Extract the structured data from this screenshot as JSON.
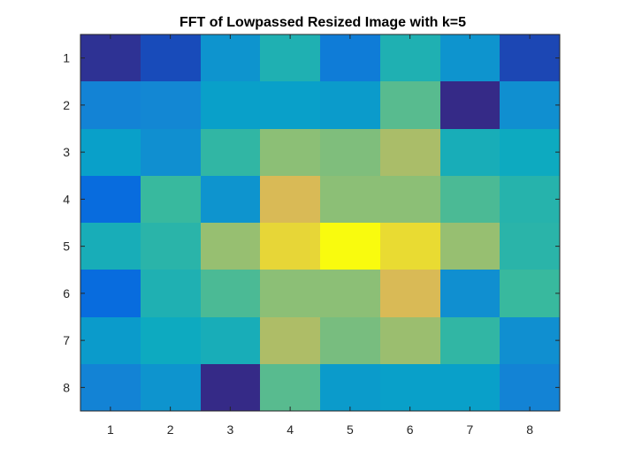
{
  "chart_data": {
    "type": "heatmap",
    "title": "FFT of Lowpassed Resized Image with k=5",
    "xlabel": "",
    "ylabel": "",
    "x_ticks": [
      "1",
      "2",
      "3",
      "4",
      "5",
      "6",
      "7",
      "8"
    ],
    "y_ticks": [
      "1",
      "2",
      "3",
      "4",
      "5",
      "6",
      "7",
      "8"
    ],
    "xlim": [
      0.5,
      8.5
    ],
    "ylim": [
      0.5,
      8.5
    ],
    "y_direction": "reverse",
    "colormap": "parula",
    "grid": false,
    "legend": "none",
    "colors": {
      "background": "#ffffff",
      "axis": "#262626"
    },
    "values": [
      [
        0.02,
        0.08,
        0.35,
        0.5,
        0.25,
        0.5,
        0.35,
        0.07
      ],
      [
        0.28,
        0.3,
        0.4,
        0.4,
        0.38,
        0.62,
        0.0,
        0.33
      ],
      [
        0.4,
        0.33,
        0.55,
        0.7,
        0.68,
        0.76,
        0.48,
        0.45
      ],
      [
        0.18,
        0.57,
        0.35,
        0.86,
        0.7,
        0.7,
        0.6,
        0.52
      ],
      [
        0.48,
        0.53,
        0.72,
        0.92,
        1.0,
        0.93,
        0.72,
        0.53
      ],
      [
        0.18,
        0.5,
        0.6,
        0.7,
        0.7,
        0.86,
        0.33,
        0.57
      ],
      [
        0.38,
        0.45,
        0.48,
        0.77,
        0.67,
        0.73,
        0.55,
        0.33
      ],
      [
        0.28,
        0.35,
        0.0,
        0.62,
        0.38,
        0.4,
        0.4,
        0.28
      ]
    ]
  }
}
